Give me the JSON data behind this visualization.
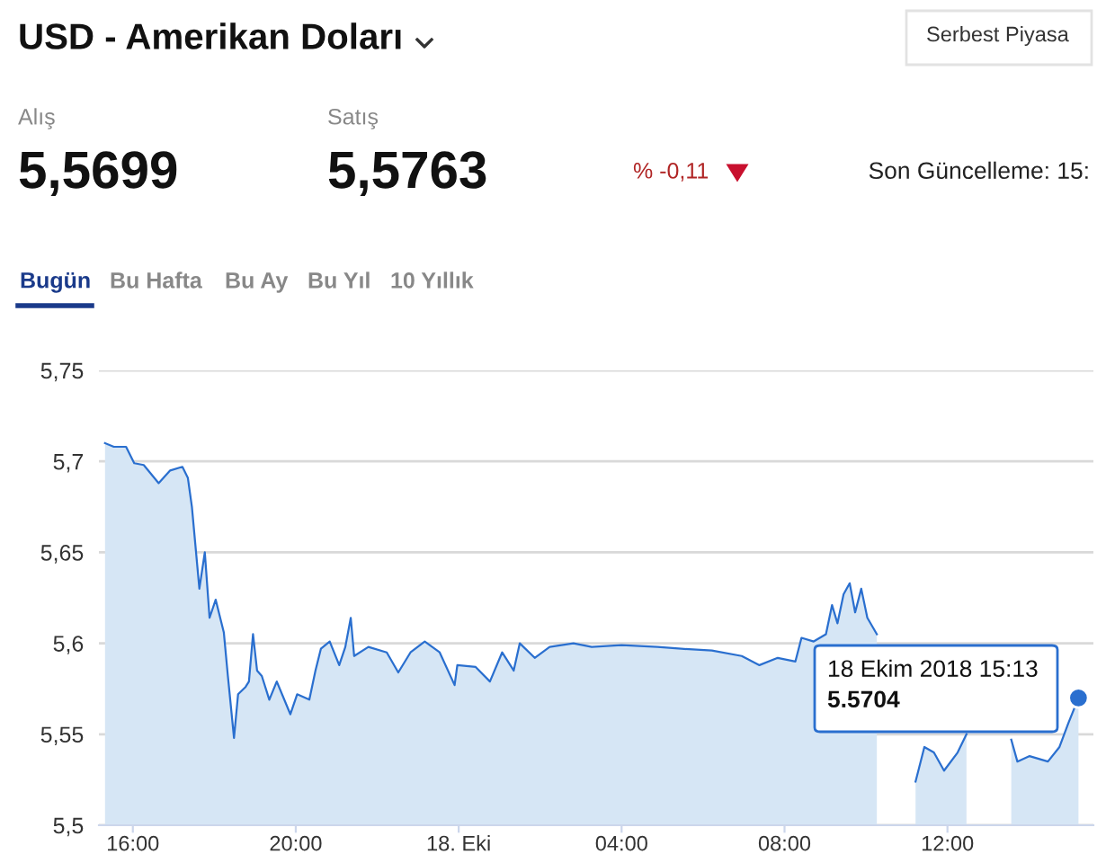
{
  "chart_data": {
    "type": "area",
    "title": "USD - Amerikan Doları",
    "annotations": [
      "Alış",
      "5,5699",
      "Satış",
      "5,5763",
      "% -0,11",
      "Son Güncelleme: 15:",
      "Bugün",
      "Bu Hafta",
      "Bu Ay",
      "Bu Yıl",
      "10 Yıllık",
      "Serbest Piyasa",
      "18 Ekim 2018 15:13",
      "5.5704"
    ],
    "x": [
      "2018-10-17T15:19",
      "2018-10-17T15:32",
      "2018-10-17T15:50",
      "2018-10-17T16:02",
      "2018-10-17T16:16",
      "2018-10-17T16:38",
      "2018-10-17T16:55",
      "2018-10-17T17:13",
      "2018-10-17T17:21",
      "2018-10-17T17:27",
      "2018-10-17T17:38",
      "2018-10-17T17:46",
      "2018-10-17T17:53",
      "2018-10-17T18:02",
      "2018-10-17T18:14",
      "2018-10-17T18:20",
      "2018-10-17T18:29",
      "2018-10-17T18:35",
      "2018-10-17T18:46",
      "2018-10-17T18:51",
      "2018-10-17T18:57",
      "2018-10-17T19:03",
      "2018-10-17T19:10",
      "2018-10-17T19:21",
      "2018-10-17T19:32",
      "2018-10-17T19:52",
      "2018-10-17T20:02",
      "2018-10-17T20:20",
      "2018-10-17T20:29",
      "2018-10-17T20:37",
      "2018-10-17T20:50",
      "2018-10-17T21:04",
      "2018-10-17T21:13",
      "2018-10-17T21:21",
      "2018-10-17T21:26",
      "2018-10-17T21:47",
      "2018-10-17T22:14",
      "2018-10-17T22:31",
      "2018-10-17T22:49",
      "2018-10-17T23:10",
      "2018-10-17T23:32",
      "2018-10-17T23:54",
      "2018-10-17T23:58",
      "2018-10-18T00:25",
      "2018-10-18T00:46",
      "2018-10-18T01:04",
      "2018-10-18T01:21",
      "2018-10-18T01:30",
      "2018-10-18T01:52",
      "2018-10-18T02:14",
      "2018-10-18T02:49",
      "2018-10-18T03:16",
      "2018-10-18T04:00",
      "2018-10-18T04:53",
      "2018-10-18T05:28",
      "2018-10-18T06:13",
      "2018-10-18T06:57",
      "2018-10-18T07:23",
      "2018-10-18T07:50",
      "2018-10-18T08:16",
      "2018-10-18T08:25",
      "2018-10-18T08:43",
      "2018-10-18T09:01",
      "2018-10-18T09:10",
      "2018-10-18T09:18",
      "2018-10-18T09:27",
      "2018-10-18T09:36",
      "2018-10-18T09:44",
      "2018-10-18T09:53",
      "2018-10-18T10:02",
      "2018-10-18T10:16",
      "2018-10-18T10:56",
      "2018-10-18T11:13",
      "2018-10-18T11:26",
      "2018-10-18T11:40",
      "2018-10-18T11:55",
      "2018-10-18T12:15",
      "2018-10-18T12:28",
      "2018-10-18T12:37",
      "2018-10-18T12:50",
      "2018-10-18T13:12",
      "2018-10-18T13:26",
      "2018-10-18T13:34",
      "2018-10-18T13:43",
      "2018-10-18T14:01",
      "2018-10-18T14:28",
      "2018-10-18T14:45",
      "2018-10-18T14:58",
      "2018-10-18T15:13"
    ],
    "series": [
      {
        "color": "#2a6fcf",
        "values": [
          5.71,
          5.708,
          5.708,
          5.699,
          5.698,
          5.688,
          5.695,
          5.697,
          5.691,
          5.675,
          5.63,
          5.65,
          5.614,
          5.624,
          5.606,
          5.582,
          5.548,
          5.572,
          5.576,
          5.579,
          5.605,
          5.585,
          5.582,
          5.569,
          5.579,
          5.561,
          5.572,
          5.569,
          5.585,
          5.597,
          5.601,
          5.588,
          5.598,
          5.614,
          5.593,
          5.598,
          5.595,
          5.584,
          5.595,
          5.601,
          5.595,
          5.577,
          5.588,
          5.587,
          5.579,
          5.595,
          5.585,
          5.6,
          5.592,
          5.598,
          5.6,
          5.598,
          5.599,
          5.598,
          5.597,
          5.596,
          5.593,
          5.588,
          5.592,
          5.59,
          5.603,
          5.601,
          5.605,
          5.621,
          5.611,
          5.627,
          5.633,
          5.617,
          5.63,
          5.614,
          5.605,
          null,
          5.524,
          5.543,
          5.54,
          5.53,
          5.54,
          5.55,
          null,
          null,
          null,
          null,
          5.547,
          5.535,
          5.538,
          5.535,
          5.543,
          5.556,
          5.57
        ]
      }
    ],
    "xlim": [
      "2018-10-17T15:10",
      "2018-10-18T15:35"
    ],
    "xticks": [
      {
        "value": "2018-10-17T16:00",
        "label": "16:00"
      },
      {
        "value": "2018-10-17T20:00",
        "label": "20:00"
      },
      {
        "value": "2018-10-18T00:00",
        "label": "18. Eki"
      },
      {
        "value": "2018-10-18T04:00",
        "label": "04:00"
      },
      {
        "value": "2018-10-18T08:00",
        "label": "08:00"
      },
      {
        "value": "2018-10-18T12:00",
        "label": "12:00"
      }
    ],
    "ylim": [
      5.5,
      5.75
    ],
    "yticks": [
      {
        "value": 5.5,
        "label": "5,5"
      },
      {
        "value": 5.55,
        "label": "5,55"
      },
      {
        "value": 5.6,
        "label": "5,6"
      },
      {
        "value": 5.65,
        "label": "5,65"
      },
      {
        "value": 5.7,
        "label": "5,7"
      },
      {
        "value": 5.75,
        "label": "5,75"
      }
    ],
    "grid": "y",
    "legend": false
  }
}
